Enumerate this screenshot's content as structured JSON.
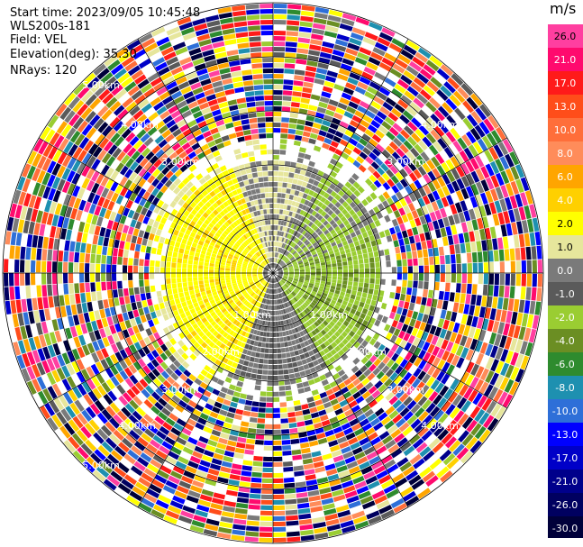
{
  "header": {
    "start_time": "Start time: 2023/09/05 10:45:48",
    "instrument": "WLS200s-181",
    "field": "Field: VEL",
    "elevation": "Elevation(deg): 35.30",
    "nrays": "NRays: 120"
  },
  "ppi": {
    "ring_labels": [
      "1.00km",
      "1.00km",
      "2.00km",
      "2.00km",
      "3.00km",
      "3.00km",
      "3.00km",
      "3.00km",
      "4.00km",
      "4.00km",
      "4.00km",
      "4.00km",
      "5.00km",
      "5.00km"
    ],
    "rays": 120
  },
  "colorbar": {
    "unit": "m/s",
    "labels": [
      "26.0",
      "21.0",
      "17.0",
      "13.0",
      "10.0",
      "8.0",
      "6.0",
      "4.0",
      "2.0",
      "1.0",
      "0.0",
      "-1.0",
      "-2.0",
      "-4.0",
      "-6.0",
      "-8.0",
      "-10.0",
      "-13.0",
      "-17.0",
      "-21.0",
      "-26.0",
      "-30.0"
    ],
    "colors": [
      "#ff3fa0",
      "#ff0a6e",
      "#ff1a1a",
      "#ff4d1a",
      "#ff6e3a",
      "#ff8c5a",
      "#ffa500",
      "#ffd000",
      "#ffff00",
      "#e6e69c",
      "#7a7a7a",
      "#5a5a5a",
      "#9acd32",
      "#6b8e23",
      "#2e8b2e",
      "#1e90b0",
      "#2e6fd8",
      "#0000ff",
      "#0000c8",
      "#00008b",
      "#000060",
      "#00003a"
    ]
  }
}
